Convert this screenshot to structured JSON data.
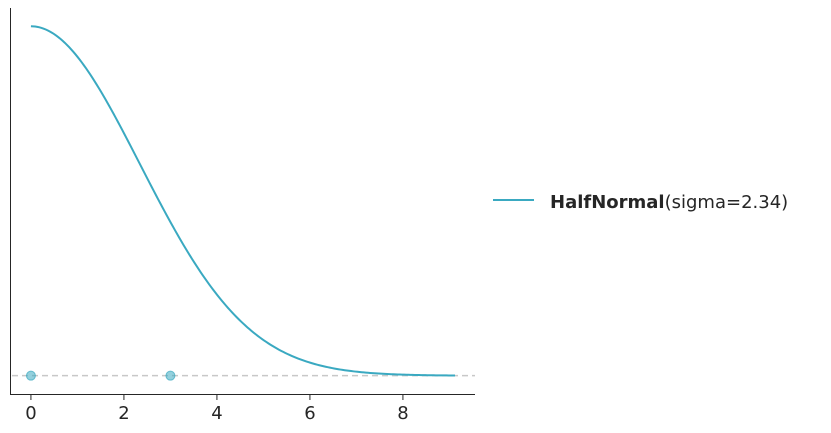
{
  "chart_data": {
    "type": "line",
    "title": "",
    "xlabel": "",
    "ylabel": "",
    "xlim": [
      -0.45,
      9.55
    ],
    "ylim": [
      -0.0179,
      0.3588
    ],
    "x_ticks": [
      0,
      2,
      4,
      6,
      8
    ],
    "x_tick_labels": [
      "0",
      "2",
      "4",
      "6",
      "8"
    ],
    "y_ticks_visible": false,
    "grid": false,
    "legend_position": "right",
    "colors": {
      "series": "#3aa9c1",
      "reference_line": "#c8c8c8",
      "axes": "#262626"
    },
    "distribution": {
      "name": "HalfNormal",
      "params_text": "(sigma=2.34)",
      "sigma": 2.34
    },
    "series": [
      {
        "name": "HalfNormal(sigma=2.34)",
        "x": [
          0,
          0.5,
          1,
          1.5,
          2,
          2.5,
          3,
          3.5,
          4,
          4.5,
          5,
          5.5,
          6,
          6.5,
          7,
          7.5,
          8,
          8.5,
          9,
          9.12
        ],
        "y": [
          0.341,
          0.333,
          0.31,
          0.276,
          0.236,
          0.192,
          0.149,
          0.111,
          0.079,
          0.053,
          0.035,
          0.021,
          0.013,
          0.0072,
          0.0039,
          0.002,
          0.001,
          0.0005,
          0.0002,
          0.0002
        ]
      }
    ],
    "reference_line_y": 0,
    "markers": [
      {
        "x": 0,
        "y": 0
      },
      {
        "x": 3,
        "y": 0
      }
    ]
  }
}
